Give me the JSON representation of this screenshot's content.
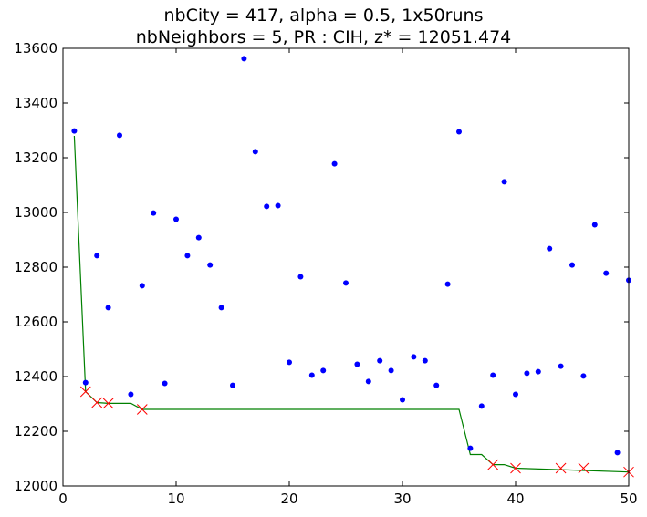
{
  "chart_data": {
    "type": "scatter",
    "title_lines": [
      "nbCity = 417, alpha = 0.5, 1x50runs",
      "nbNeighbors = 5, PR : CIH, z* = 12051.474"
    ],
    "xlabel": "",
    "ylabel": "",
    "xlim": [
      0,
      50
    ],
    "ylim": [
      12000,
      13600
    ],
    "x_ticks": [
      "0",
      "10",
      "20",
      "30",
      "40",
      "50"
    ],
    "y_ticks": [
      "12000",
      "12200",
      "12400",
      "12600",
      "12800",
      "13000",
      "13200",
      "13400",
      "13600"
    ],
    "grid": false,
    "legend": "none",
    "series": [
      {
        "kind": "points",
        "color": "#0000ff",
        "marker": "circle",
        "points": [
          [
            1,
            13298
          ],
          [
            2,
            12378
          ],
          [
            3,
            12842
          ],
          [
            4,
            12652
          ],
          [
            5,
            13282
          ],
          [
            6,
            12335
          ],
          [
            7,
            12732
          ],
          [
            8,
            12998
          ],
          [
            9,
            12375
          ],
          [
            10,
            12975
          ],
          [
            11,
            12842
          ],
          [
            12,
            12908
          ],
          [
            13,
            12808
          ],
          [
            14,
            12652
          ],
          [
            15,
            12368
          ],
          [
            16,
            13562
          ],
          [
            17,
            13222
          ],
          [
            18,
            13022
          ],
          [
            19,
            13025
          ],
          [
            20,
            12452
          ],
          [
            21,
            12765
          ],
          [
            22,
            12405
          ],
          [
            23,
            12422
          ],
          [
            24,
            13178
          ],
          [
            25,
            12742
          ],
          [
            26,
            12445
          ],
          [
            27,
            12382
          ],
          [
            28,
            12458
          ],
          [
            29,
            12422
          ],
          [
            30,
            12315
          ],
          [
            31,
            12472
          ],
          [
            32,
            12458
          ],
          [
            33,
            12368
          ],
          [
            34,
            12738
          ],
          [
            35,
            13295
          ],
          [
            36,
            12138
          ],
          [
            37,
            12292
          ],
          [
            38,
            12405
          ],
          [
            39,
            13112
          ],
          [
            40,
            12335
          ],
          [
            41,
            12412
          ],
          [
            42,
            12418
          ],
          [
            43,
            12868
          ],
          [
            44,
            12438
          ],
          [
            45,
            12808
          ],
          [
            46,
            12402
          ],
          [
            47,
            12955
          ],
          [
            48,
            12778
          ],
          [
            49,
            12122
          ],
          [
            50,
            12752
          ]
        ]
      },
      {
        "kind": "line",
        "color": "#008000",
        "points": [
          [
            1,
            13280
          ],
          [
            2,
            12345
          ],
          [
            3,
            12305
          ],
          [
            4,
            12302
          ],
          [
            5,
            12302
          ],
          [
            6,
            12302
          ],
          [
            7,
            12280
          ],
          [
            8,
            12280
          ],
          [
            35,
            12280
          ],
          [
            36,
            12115
          ],
          [
            37,
            12115
          ],
          [
            38,
            12078
          ],
          [
            39,
            12078
          ],
          [
            40,
            12065
          ],
          [
            50,
            12051
          ]
        ]
      },
      {
        "kind": "markers",
        "color": "#ff0000",
        "marker": "x",
        "points": [
          [
            2,
            12345
          ],
          [
            3,
            12305
          ],
          [
            4,
            12302
          ],
          [
            7,
            12280
          ],
          [
            38,
            12078
          ],
          [
            40,
            12065
          ],
          [
            44,
            12065
          ],
          [
            46,
            12065
          ],
          [
            50,
            12051
          ]
        ]
      }
    ]
  }
}
